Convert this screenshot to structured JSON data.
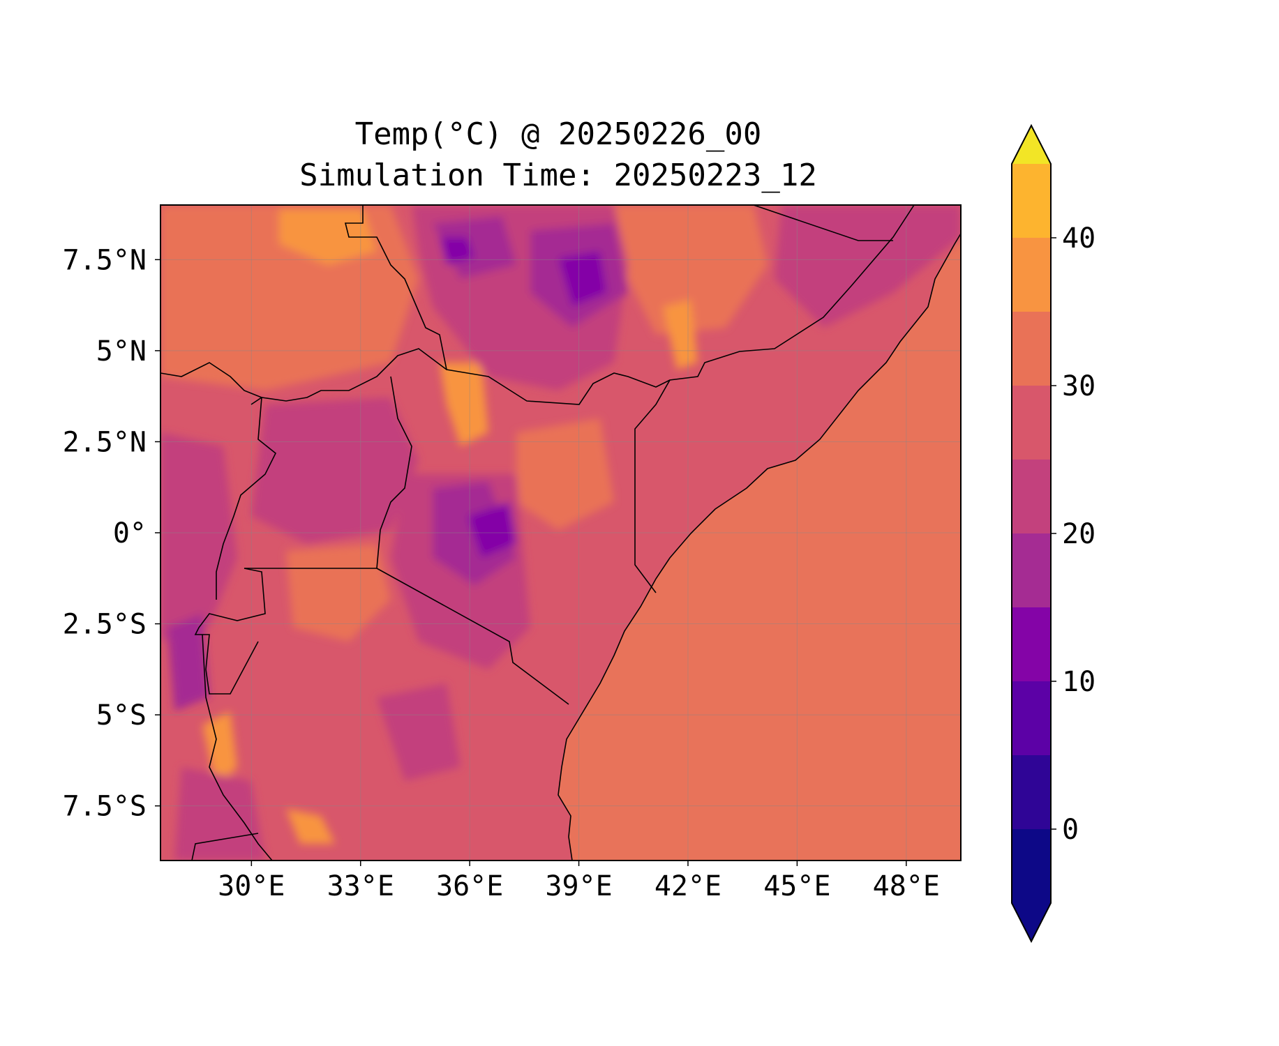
{
  "title": "Temp(°C) @ 20250226_00",
  "subtitle": "Simulation Time: 20250223_12",
  "map": {
    "lon_range": [
      27.5,
      49.5
    ],
    "lat_range": [
      -9,
      9
    ],
    "lon_ticks": [
      "30°E",
      "33°E",
      "36°E",
      "39°E",
      "42°E",
      "45°E",
      "48°E"
    ],
    "lat_ticks": [
      "7.5°N",
      "5°N",
      "2.5°N",
      "0°",
      "2.5°S",
      "5°S",
      "7.5°S"
    ],
    "grid": true,
    "ocean_color": "#e8735a"
  },
  "colorbar": {
    "ticks": [
      "0",
      "10",
      "20",
      "30",
      "40"
    ],
    "levels": [
      -5,
      0,
      5,
      10,
      15,
      20,
      25,
      30,
      35,
      40,
      45
    ],
    "colors": [
      "#0d0887",
      "#2f0596",
      "#5c01a6",
      "#8404a7",
      "#a52c93",
      "#c3417d",
      "#d8576b",
      "#e97257",
      "#f89441",
      "#fdb42f",
      "#f2e526"
    ],
    "extend": "both"
  },
  "chart_data": {
    "type": "heatmap",
    "title": "Temp(°C) @ 20250226_00",
    "subtitle": "Simulation Time: 20250223_12",
    "xlabel": "",
    "ylabel": "",
    "xlim": [
      27.5,
      49.5
    ],
    "ylim": [
      -9,
      9
    ],
    "colorbar_range": [
      -5,
      45
    ],
    "colorbar_ticks": [
      0,
      10,
      20,
      30,
      40
    ],
    "regions": [
      {
        "name": "",
        "lon": 44.0,
        "lat": -3.0,
        "value": 27
      },
      {
        "name": "",
        "lon": 38.6,
        "lat": 6.9,
        "value": 13
      },
      {
        "name": "",
        "lon": 36.8,
        "lat": -0.5,
        "value": 10
      },
      {
        "name": "",
        "lon": 33.3,
        "lat": 8.0,
        "value": 31
      },
      {
        "name": "",
        "lon": 35.5,
        "lat": 3.5,
        "value": 31
      },
      {
        "name": "",
        "lon": 33.2,
        "lat": -1.0,
        "value": 27
      },
      {
        "name": "",
        "lon": 35.0,
        "lat": -6.0,
        "value": 23
      },
      {
        "name": "",
        "lon": 43.5,
        "lat": 3.0,
        "value": 23
      },
      {
        "name": "",
        "lon": 46.0,
        "lat": 7.0,
        "value": 18
      }
    ]
  }
}
